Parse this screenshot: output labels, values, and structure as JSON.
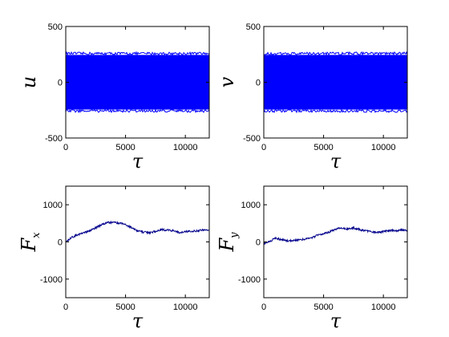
{
  "chart_data": [
    {
      "type": "area",
      "xlabel": "τ",
      "ylabel": "u",
      "xlim": [
        0,
        12000
      ],
      "ylim": [
        -500,
        500
      ],
      "xticks": [
        "0",
        "5000",
        "10000"
      ],
      "yticks": [
        "-500",
        "0",
        "500"
      ],
      "series": [
        {
          "color": "#0000ff",
          "x": [
            0,
            12000
          ],
          "upper": [
            245,
            245
          ],
          "lower": [
            -245,
            -245
          ]
        }
      ]
    },
    {
      "type": "area",
      "xlabel": "τ",
      "ylabel": "v",
      "xlim": [
        0,
        12000
      ],
      "ylim": [
        -500,
        500
      ],
      "xticks": [
        "0",
        "5000",
        "10000"
      ],
      "yticks": [
        "-500",
        "0",
        "500"
      ],
      "series": [
        {
          "color": "#0000ff",
          "x": [
            0,
            12000
          ],
          "upper": [
            245,
            245
          ],
          "lower": [
            -245,
            -245
          ]
        }
      ]
    },
    {
      "type": "line",
      "xlabel": "τ",
      "ylabel": "F",
      "ylabel_sub": "x",
      "xlim": [
        0,
        12000
      ],
      "ylim": [
        -1500,
        1500
      ],
      "xticks": [
        "0",
        "5000",
        "10000"
      ],
      "yticks": [
        "-1000",
        "0",
        "1000"
      ],
      "series": [
        {
          "color": "#00008b",
          "x": [
            0,
            500,
            1000,
            1500,
            2000,
            2500,
            3000,
            3500,
            4000,
            4500,
            5000,
            5500,
            6000,
            6500,
            7000,
            7500,
            8000,
            8500,
            9000,
            9500,
            10000,
            10500,
            11000,
            11500,
            12000
          ],
          "y": [
            0,
            120,
            200,
            240,
            300,
            380,
            460,
            520,
            530,
            500,
            470,
            380,
            300,
            260,
            250,
            280,
            330,
            320,
            300,
            250,
            280,
            290,
            300,
            320,
            330
          ]
        }
      ]
    },
    {
      "type": "line",
      "xlabel": "τ",
      "ylabel": "F",
      "ylabel_sub": "y",
      "xlim": [
        0,
        12000
      ],
      "ylim": [
        -1500,
        1500
      ],
      "xticks": [
        "0",
        "5000",
        "10000"
      ],
      "yticks": [
        "-1000",
        "0",
        "1000"
      ],
      "series": [
        {
          "color": "#00008b",
          "x": [
            0,
            500,
            1000,
            1500,
            2000,
            2500,
            3000,
            3500,
            4000,
            4500,
            5000,
            5500,
            6000,
            6500,
            7000,
            7500,
            8000,
            8500,
            9000,
            9500,
            10000,
            10500,
            11000,
            11500,
            12000
          ],
          "y": [
            -50,
            20,
            100,
            60,
            30,
            40,
            60,
            80,
            110,
            180,
            220,
            270,
            340,
            380,
            350,
            380,
            330,
            300,
            280,
            250,
            280,
            310,
            300,
            320,
            310
          ]
        }
      ]
    }
  ]
}
